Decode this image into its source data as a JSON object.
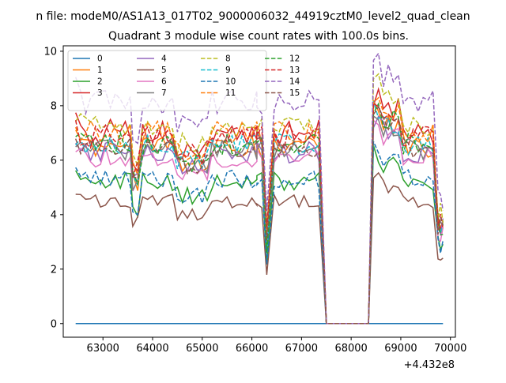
{
  "chart_data": {
    "type": "line",
    "suptitle": "n file: modeM0/AS1A13_017T02_9000006032_44919cztM0_level2_quad_clean",
    "title": "Quadrant 3 module wise count rates with 100.0s bins.",
    "xlabel": "",
    "ylabel": "",
    "x_offset_text": "+4.432e8",
    "xlim": [
      62200,
      70100
    ],
    "ylim": [
      -0.5,
      10.2
    ],
    "xticks": [
      63000,
      64000,
      65000,
      66000,
      67000,
      68000,
      69000,
      70000
    ],
    "yticks": [
      0,
      2,
      4,
      6,
      8,
      10
    ],
    "xtick_labels": [
      "63000",
      "64000",
      "65000",
      "66000",
      "67000",
      "68000",
      "69000",
      "70000"
    ],
    "ytick_labels": [
      "0",
      "2",
      "4",
      "6",
      "8",
      "10"
    ],
    "grid": false,
    "legend_position": "top-left",
    "legend_columns": 4,
    "x_segments": [
      {
        "start": 62450,
        "end": 63600,
        "step": 100
      },
      {
        "start": 63600,
        "end": 66100,
        "step": 100
      },
      {
        "start": 66100,
        "end": 66350,
        "step": 100
      },
      {
        "start": 66450,
        "end": 67400,
        "step": 100
      },
      {
        "start": 67500,
        "end": 67550,
        "step": 50
      },
      {
        "start": 68300,
        "end": 68350,
        "step": 50
      },
      {
        "start": 68450,
        "end": 69750,
        "step": 100
      },
      {
        "start": 69800,
        "end": 69850,
        "step": 50
      }
    ],
    "series": [
      {
        "name": "0",
        "color": "#1f77b4",
        "dash": "solid",
        "level": 0.0,
        "amp": 0.0,
        "seed": 1
      },
      {
        "name": "1",
        "color": "#ff7f0e",
        "dash": "solid",
        "level": 6.5,
        "amp": 0.45,
        "seed": 2
      },
      {
        "name": "2",
        "color": "#2ca02c",
        "dash": "solid",
        "level": 5.2,
        "amp": 0.35,
        "seed": 3
      },
      {
        "name": "3",
        "color": "#d62728",
        "dash": "solid",
        "level": 7.0,
        "amp": 0.5,
        "seed": 4
      },
      {
        "name": "4",
        "color": "#9467bd",
        "dash": "solid",
        "level": 6.3,
        "amp": 0.4,
        "seed": 5
      },
      {
        "name": "5",
        "color": "#8c564b",
        "dash": "solid",
        "level": 4.5,
        "amp": 0.25,
        "seed": 6
      },
      {
        "name": "6",
        "color": "#e377c2",
        "dash": "solid",
        "level": 6.1,
        "amp": 0.4,
        "seed": 7
      },
      {
        "name": "7",
        "color": "#7f7f7f",
        "dash": "solid",
        "level": 6.4,
        "amp": 0.4,
        "seed": 8
      },
      {
        "name": "8",
        "color": "#bcbd22",
        "dash": "dashed",
        "level": 7.3,
        "amp": 0.45,
        "seed": 9
      },
      {
        "name": "9",
        "color": "#17becf",
        "dash": "dashed",
        "level": 6.6,
        "amp": 0.4,
        "seed": 10
      },
      {
        "name": "10",
        "color": "#1f77b4",
        "dash": "dashed",
        "level": 5.3,
        "amp": 0.35,
        "seed": 11
      },
      {
        "name": "11",
        "color": "#ff7f0e",
        "dash": "dashed",
        "level": 7.0,
        "amp": 0.45,
        "seed": 12
      },
      {
        "name": "12",
        "color": "#2ca02c",
        "dash": "dashed",
        "level": 6.6,
        "amp": 0.45,
        "seed": 13
      },
      {
        "name": "13",
        "color": "#d62728",
        "dash": "dashed",
        "level": 6.9,
        "amp": 0.45,
        "seed": 14
      },
      {
        "name": "14",
        "color": "#9467bd",
        "dash": "dashed",
        "level": 8.2,
        "amp": 0.5,
        "seed": 15
      },
      {
        "name": "15",
        "color": "#8c564b",
        "dash": "dashed",
        "level": 6.5,
        "amp": 0.4,
        "seed": 16
      }
    ]
  }
}
